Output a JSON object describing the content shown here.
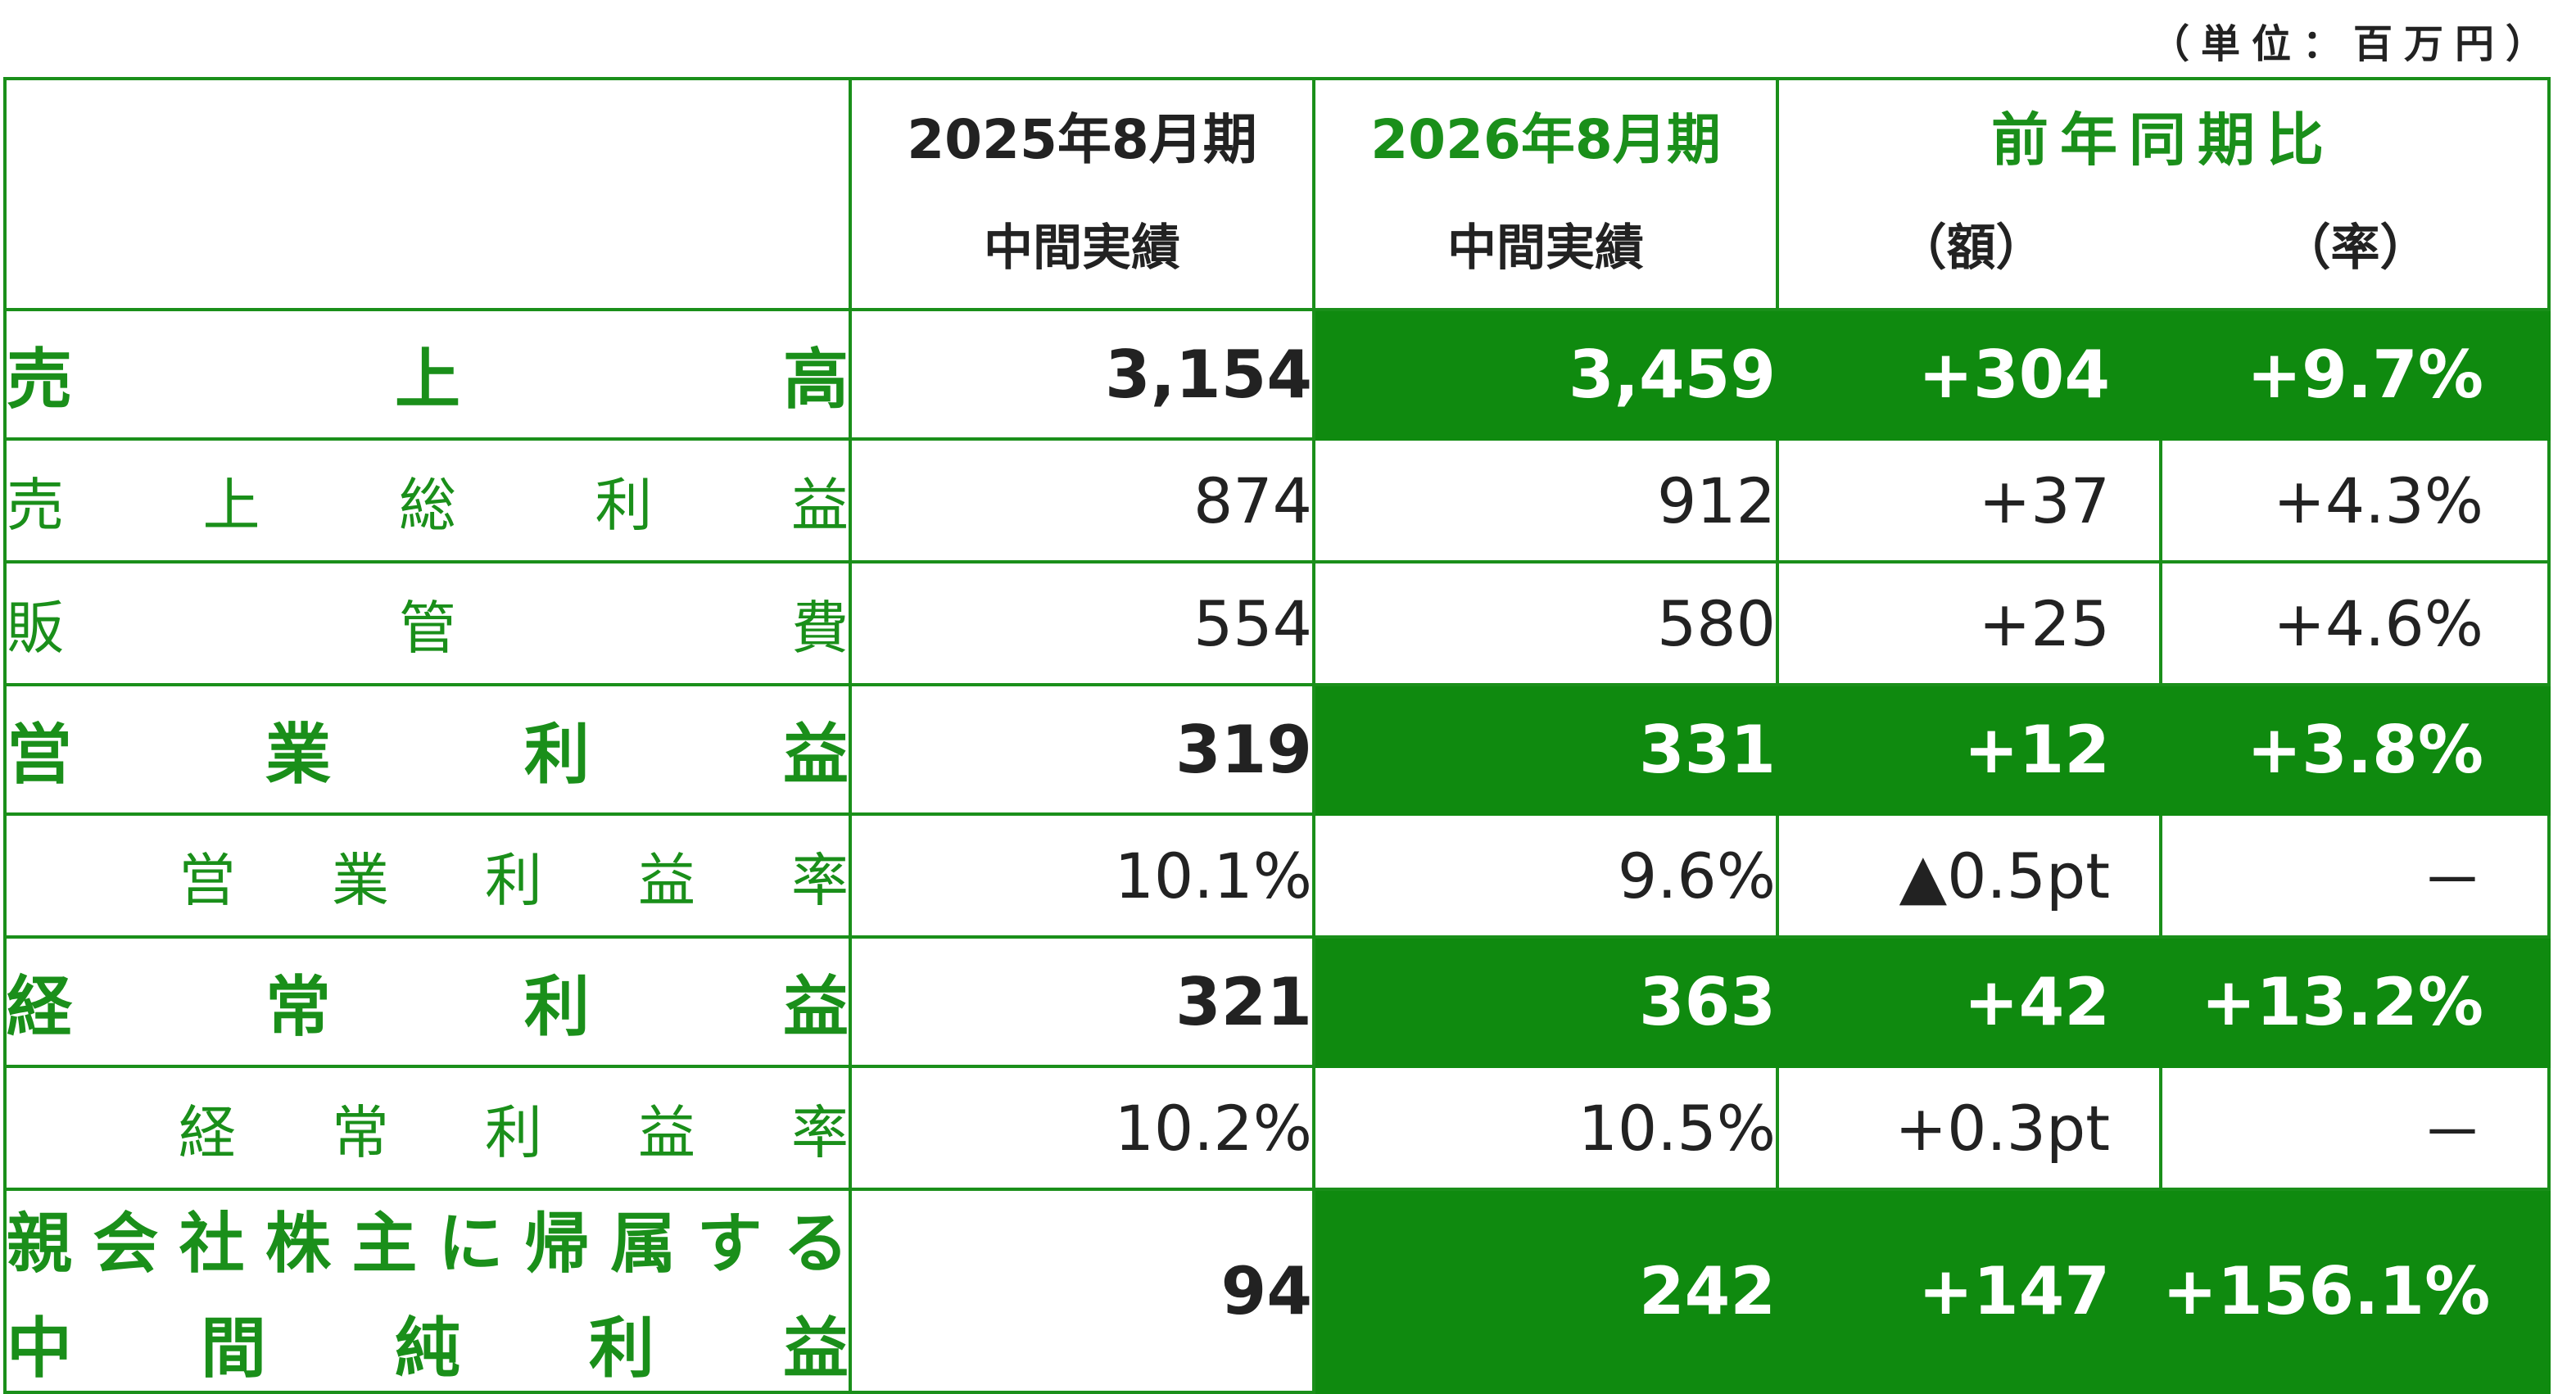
{
  "unit_note": "（単位：百万円）",
  "header": {
    "prev_line1": "2025年8月期",
    "prev_line2": "中間実績",
    "cur_line1": "2026年8月期",
    "cur_line2": "中間実績",
    "compare_title": "前年同期比",
    "compare_amount": "（額）",
    "compare_rate": "（率）"
  },
  "rows": [
    {
      "label_chars": [
        "売",
        "上",
        "高"
      ],
      "prev": "3,154",
      "cur": "3,459",
      "diff": "+304",
      "rate": "+9.7%"
    },
    {
      "label_chars": [
        "売",
        "上",
        "総",
        "利",
        "益"
      ],
      "prev": "874",
      "cur": "912",
      "diff": "+37",
      "rate": "+4.3%"
    },
    {
      "label_chars": [
        "販",
        "管",
        "費"
      ],
      "prev": "554",
      "cur": "580",
      "diff": "+25",
      "rate": "+4.6%"
    },
    {
      "label_chars": [
        "営",
        "業",
        "利",
        "益"
      ],
      "prev": "319",
      "cur": "331",
      "diff": "+12",
      "rate": "+3.8%"
    },
    {
      "label_chars": [
        "営",
        "業",
        "利",
        "益",
        "率"
      ],
      "prev": "10.1%",
      "cur": "9.6%",
      "diff": "▲0.5pt",
      "rate": "－"
    },
    {
      "label_chars": [
        "経",
        "常",
        "利",
        "益"
      ],
      "prev": "321",
      "cur": "363",
      "diff": "+42",
      "rate": "+13.2%"
    },
    {
      "label_chars": [
        "経",
        "常",
        "利",
        "益",
        "率"
      ],
      "prev": "10.2%",
      "cur": "10.5%",
      "diff": "+0.3pt",
      "rate": "－"
    },
    {
      "label_small_chars": [
        "親",
        "会",
        "社",
        "株",
        "主",
        "に",
        "帰",
        "属",
        "す",
        "る"
      ],
      "label_chars": [
        "中",
        "間",
        "純",
        "利",
        "益"
      ],
      "prev": "94",
      "cur": "242",
      "diff": "+147",
      "rate": "+156.1%"
    }
  ]
}
